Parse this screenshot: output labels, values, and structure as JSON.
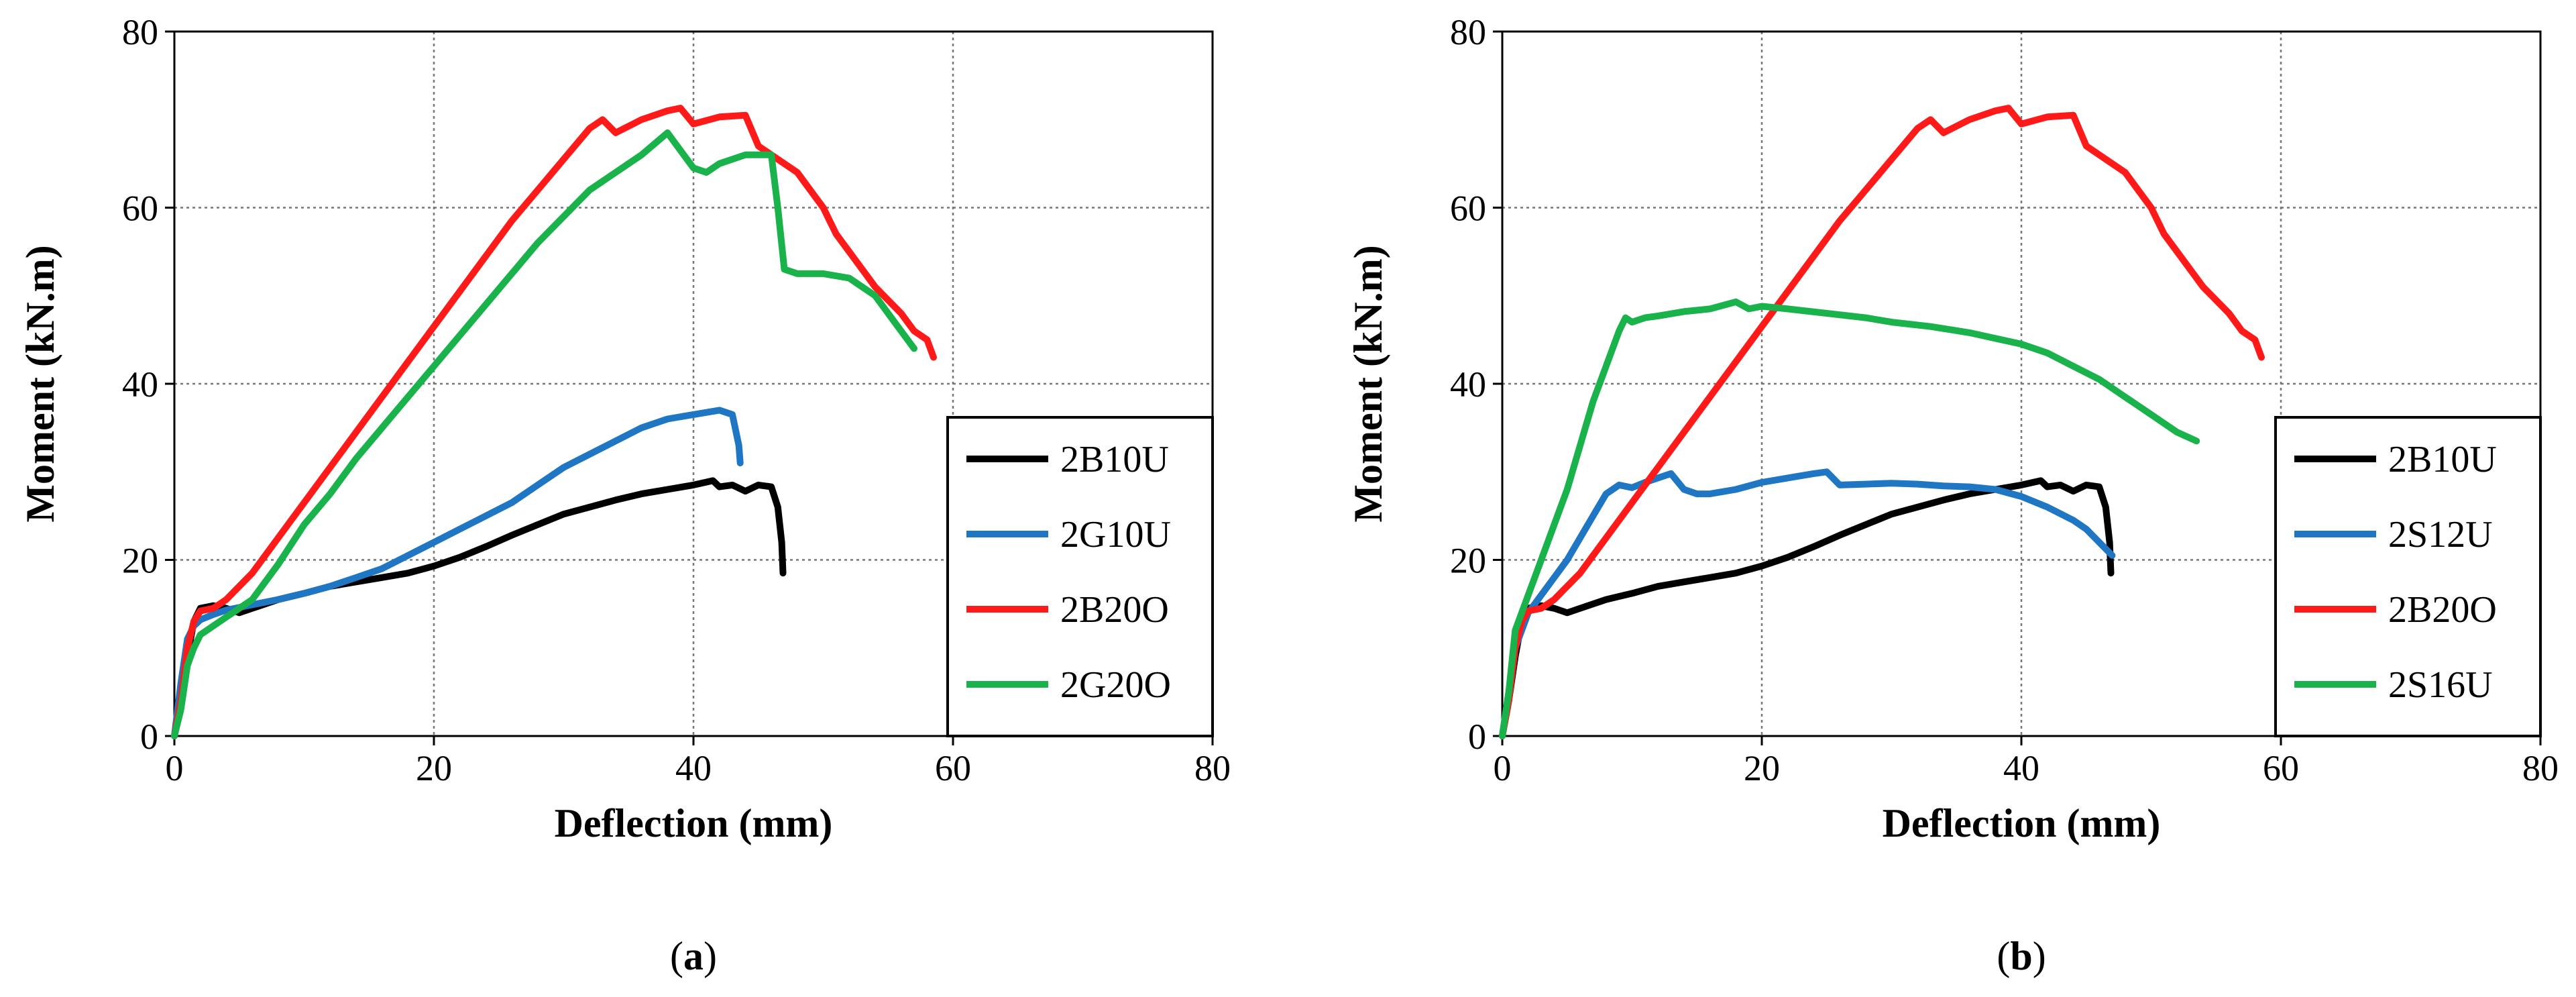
{
  "chart_data": [
    {
      "type": "line",
      "caption_letter": "a",
      "title": "",
      "xlabel": "Deflection (mm)",
      "ylabel": "Moment (kN.m)",
      "xlim": [
        0,
        80
      ],
      "ylim": [
        0,
        80
      ],
      "xticks": [
        0,
        20,
        40,
        60,
        80
      ],
      "yticks": [
        0,
        20,
        40,
        60,
        80
      ],
      "grid": true,
      "legend_position": "bottom-right",
      "series": [
        {
          "name": "2B10U",
          "color": "#000000",
          "x": [
            0,
            0.5,
            1,
            1.5,
            2,
            3,
            4,
            5,
            6,
            8,
            10,
            12,
            14,
            16,
            18,
            20,
            22,
            24,
            26,
            28,
            30,
            32,
            34,
            36,
            38,
            40,
            41.5,
            42,
            43,
            44,
            45,
            46,
            46.5,
            46.8,
            46.9
          ],
          "y": [
            0,
            4,
            9,
            13,
            14.5,
            14.8,
            14.5,
            14,
            14.5,
            15.5,
            16.2,
            17,
            17.5,
            18,
            18.5,
            19.3,
            20.3,
            21.5,
            22.8,
            24,
            25.2,
            26,
            26.8,
            27.5,
            28,
            28.5,
            29,
            28.3,
            28.5,
            27.8,
            28.5,
            28.3,
            26,
            22,
            18.5
          ]
        },
        {
          "name": "2G10U",
          "color": "#1F77C4",
          "x": [
            0,
            0.5,
            1,
            1.5,
            2,
            3,
            4,
            5,
            6,
            8,
            10,
            12,
            14,
            16,
            18,
            20,
            22,
            24,
            26,
            28,
            30,
            32,
            34,
            36,
            38,
            40,
            42,
            43,
            43.5,
            43.6
          ],
          "y": [
            0,
            6,
            11,
            12.5,
            13.2,
            13.8,
            14.3,
            14.6,
            14.9,
            15.5,
            16.2,
            17,
            18,
            19,
            20.5,
            22,
            23.5,
            25,
            26.5,
            28.5,
            30.5,
            32,
            33.5,
            35,
            36,
            36.5,
            37,
            36.5,
            33,
            31
          ]
        },
        {
          "name": "2B20O",
          "color": "#FF1A1A",
          "x": [
            0,
            0.5,
            1,
            1.5,
            2,
            3,
            4,
            6,
            8,
            10,
            12,
            14,
            16,
            18,
            20,
            22,
            24,
            26,
            28,
            30,
            32,
            33,
            34,
            36,
            38,
            39,
            40,
            42,
            44,
            45,
            46,
            48,
            50,
            51,
            52,
            54,
            56,
            57,
            58,
            58.5
          ],
          "y": [
            0,
            4,
            10,
            13,
            14.2,
            14.5,
            15.5,
            18.5,
            22.5,
            26.5,
            30.5,
            34.5,
            38.5,
            42.5,
            46.5,
            50.5,
            54.5,
            58.5,
            62,
            65.5,
            69,
            70,
            68.5,
            70,
            71,
            71.3,
            69.5,
            70.3,
            70.5,
            67,
            66,
            64,
            60,
            57,
            55,
            51,
            48,
            46,
            45,
            43
          ]
        },
        {
          "name": "2G20O",
          "color": "#19B24B",
          "x": [
            0,
            0.5,
            1,
            1.5,
            2,
            3,
            4,
            6,
            8,
            10,
            12,
            14,
            16,
            18,
            20,
            22,
            24,
            26,
            28,
            30,
            32,
            34,
            36,
            38,
            39,
            40,
            41,
            42,
            44,
            46,
            46.5,
            47,
            48,
            50,
            52,
            54,
            56,
            57
          ],
          "y": [
            0,
            3,
            8,
            10,
            11.5,
            12.5,
            13.5,
            15.5,
            19.5,
            24,
            27.5,
            31.5,
            35,
            38.5,
            42,
            45.5,
            49,
            52.5,
            56,
            59,
            62,
            64,
            66,
            68.5,
            66.5,
            64.5,
            64,
            65,
            66,
            66,
            60,
            53,
            52.5,
            52.5,
            52,
            50,
            46,
            44
          ]
        }
      ]
    },
    {
      "type": "line",
      "caption_letter": "b",
      "title": "",
      "xlabel": "Deflection (mm)",
      "ylabel": "Moment (kN.m)",
      "xlim": [
        0,
        80
      ],
      "ylim": [
        0,
        80
      ],
      "xticks": [
        0,
        20,
        40,
        60,
        80
      ],
      "yticks": [
        0,
        20,
        40,
        60,
        80
      ],
      "grid": true,
      "legend_position": "bottom-right",
      "series": [
        {
          "name": "2B10U",
          "color": "#000000",
          "x": [
            0,
            0.5,
            1,
            1.5,
            2,
            3,
            4,
            5,
            6,
            8,
            10,
            12,
            14,
            16,
            18,
            20,
            22,
            24,
            26,
            28,
            30,
            32,
            34,
            36,
            38,
            40,
            41.5,
            42,
            43,
            44,
            45,
            46,
            46.5,
            46.8,
            46.9
          ],
          "y": [
            0,
            4,
            9,
            13,
            14.5,
            14.8,
            14.5,
            14,
            14.5,
            15.5,
            16.2,
            17,
            17.5,
            18,
            18.5,
            19.3,
            20.3,
            21.5,
            22.8,
            24,
            25.2,
            26,
            26.8,
            27.5,
            28,
            28.5,
            29,
            28.3,
            28.5,
            27.8,
            28.5,
            28.3,
            26,
            22,
            18.5
          ]
        },
        {
          "name": "2S12U",
          "color": "#1F77C4",
          "x": [
            0,
            0.5,
            1,
            2,
            3,
            4,
            5,
            6,
            7,
            8,
            9,
            10,
            11,
            12,
            13,
            14,
            15,
            16,
            18,
            20,
            22,
            24,
            25,
            26,
            28,
            30,
            32,
            34,
            36,
            38,
            40,
            42,
            44,
            45,
            46,
            47
          ],
          "y": [
            0,
            5,
            10,
            14,
            16,
            18,
            20,
            22.5,
            25,
            27.5,
            28.5,
            28.2,
            28.8,
            29.3,
            29.8,
            28,
            27.5,
            27.5,
            28,
            28.8,
            29.3,
            29.8,
            30,
            28.5,
            28.6,
            28.7,
            28.6,
            28.4,
            28.3,
            28,
            27.2,
            26,
            24.5,
            23.5,
            22,
            20.5
          ]
        },
        {
          "name": "2B20O",
          "color": "#FF1A1A",
          "x": [
            0,
            0.5,
            1,
            1.5,
            2,
            3,
            4,
            6,
            8,
            10,
            12,
            14,
            16,
            18,
            20,
            22,
            24,
            26,
            28,
            30,
            32,
            33,
            34,
            36,
            38,
            39,
            40,
            42,
            44,
            45,
            46,
            48,
            50,
            51,
            52,
            54,
            56,
            57,
            58,
            58.5
          ],
          "y": [
            0,
            4,
            10,
            13,
            14.2,
            14.5,
            15.5,
            18.5,
            22.5,
            26.5,
            30.5,
            34.5,
            38.5,
            42.5,
            46.5,
            50.5,
            54.5,
            58.5,
            62,
            65.5,
            69,
            70,
            68.5,
            70,
            71,
            71.3,
            69.5,
            70.3,
            70.5,
            67,
            66,
            64,
            60,
            57,
            55,
            51,
            48,
            46,
            45,
            43
          ]
        },
        {
          "name": "2S16U",
          "color": "#19B24B",
          "x": [
            0,
            0.5,
            1,
            2,
            3,
            4,
            5,
            6,
            7,
            8,
            9,
            9.5,
            10,
            11,
            12,
            14,
            16,
            18,
            19,
            20,
            22,
            25,
            28,
            30,
            33,
            36,
            40,
            42,
            44,
            46,
            48,
            50,
            52,
            53.5
          ],
          "y": [
            0,
            5,
            12,
            16,
            20,
            24,
            28,
            33,
            38,
            42,
            46,
            47.5,
            47,
            47.5,
            47.7,
            48.2,
            48.5,
            49.3,
            48.5,
            48.8,
            48.5,
            48,
            47.5,
            47,
            46.5,
            45.8,
            44.5,
            43.5,
            42,
            40.5,
            38.5,
            36.5,
            34.5,
            33.5
          ]
        }
      ]
    }
  ]
}
